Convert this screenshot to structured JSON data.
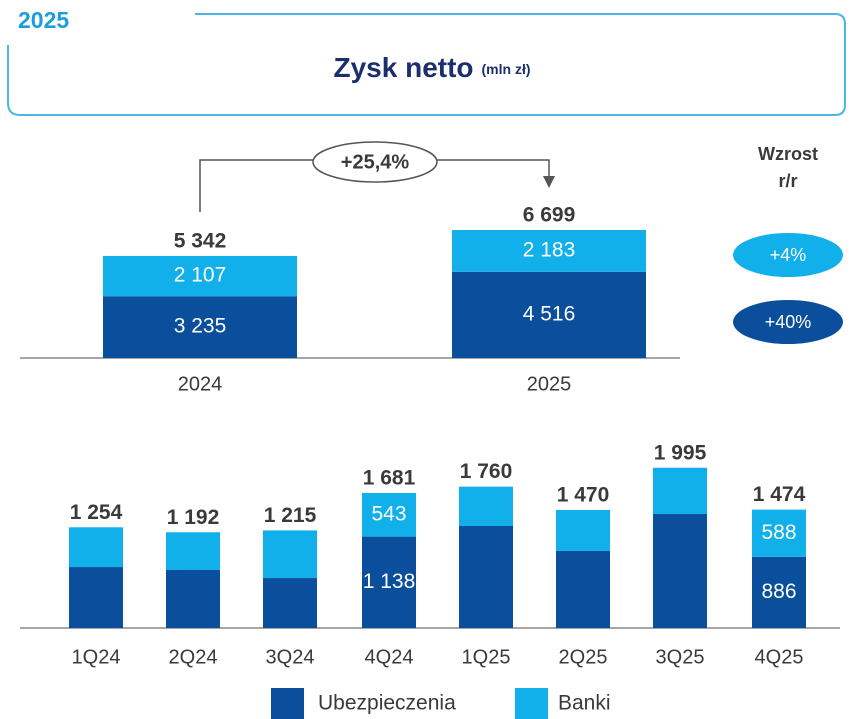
{
  "header": {
    "year": "2025",
    "title": "Zysk netto",
    "unit": "(mln zł)"
  },
  "chart_data": [
    {
      "type": "bar",
      "stacked": true,
      "categories": [
        "2024",
        "2025"
      ],
      "series": [
        {
          "name": "Ubezpieczenia",
          "color": "#0b4f9c",
          "values": [
            3235,
            4516
          ],
          "value_labels": [
            "3 235",
            "4 516"
          ],
          "growth_label": "+40%"
        },
        {
          "name": "Banki",
          "color": "#12b0ea",
          "values": [
            2107,
            2183
          ],
          "value_labels": [
            "2 107",
            "2 183"
          ],
          "growth_label": "+4%"
        }
      ],
      "totals": [
        5342,
        6699
      ],
      "total_labels": [
        "5 342",
        "6 699"
      ],
      "change_label": "+25,4%",
      "growth_title": [
        "Wzrost",
        "r/r"
      ]
    },
    {
      "type": "bar",
      "stacked": true,
      "categories": [
        "1Q24",
        "2Q24",
        "3Q24",
        "4Q24",
        "1Q25",
        "2Q25",
        "3Q25",
        "4Q25"
      ],
      "series": [
        {
          "name": "Ubezpieczenia",
          "color": "#0b4f9c",
          "values": [
            759,
            722,
            622,
            1138,
            1270,
            959,
            1419,
            886
          ],
          "value_labels": [
            null,
            null,
            null,
            "1 138",
            null,
            null,
            null,
            "886"
          ]
        },
        {
          "name": "Banki",
          "color": "#12b0ea",
          "values": [
            495,
            470,
            593,
            543,
            490,
            511,
            576,
            588
          ],
          "value_labels": [
            null,
            null,
            null,
            "543",
            null,
            null,
            null,
            "588"
          ]
        }
      ],
      "totals": [
        1254,
        1192,
        1215,
        1681,
        1760,
        1470,
        1995,
        1474
      ],
      "total_labels": [
        "1 254",
        "1 192",
        "1 215",
        "1 681",
        "1 760",
        "1 470",
        "1 995",
        "1 474"
      ]
    }
  ]
}
